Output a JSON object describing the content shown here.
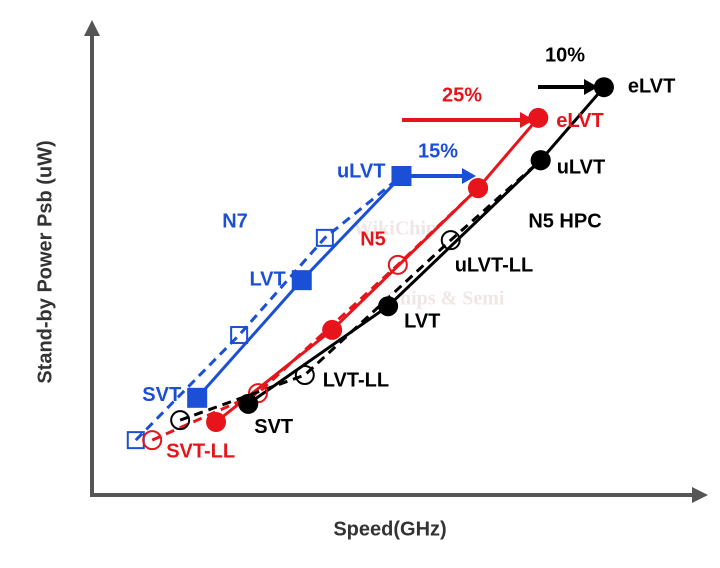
{
  "chart_data": {
    "type": "line",
    "x_label": "Speed(GHz)",
    "y_label": "Stand-by Power Psb (uW)",
    "watermark": [
      "WikiChip",
      "Chips & Semi"
    ],
    "xlim": [
      0,
      100
    ],
    "ylim": [
      0,
      100
    ],
    "series": [
      {
        "name": "N7",
        "color": "#1a4fd6",
        "style": "solid",
        "marker": "filled-square",
        "x": [
          17.3,
          34.5,
          50.9
        ],
        "values": [
          20.9,
          46.2,
          68.6
        ],
        "labels": [
          "SVT",
          "LVT",
          "uLVT"
        ]
      },
      {
        "color": "#1a4fd6",
        "style": "dashed",
        "marker": "open-square",
        "x": [
          7.2,
          24.2,
          38.3,
          50.9
        ],
        "values": [
          11.8,
          34.4,
          55.3,
          68.6
        ]
      },
      {
        "name": "N5",
        "color": "#e8141c",
        "style": "solid",
        "marker": "filled-circle",
        "x": [
          20.4,
          39.5,
          63.5,
          73.4
        ],
        "values": [
          15.7,
          35.5,
          66.0,
          81.1
        ],
        "labels": [
          null,
          null,
          null,
          "eLVT"
        ]
      },
      {
        "color": "#e8141c",
        "style": "dashed",
        "marker": "open-circle",
        "x": [
          9.9,
          27.3,
          50.3,
          63.5
        ],
        "values": [
          11.8,
          21.9,
          49.5,
          66.0
        ],
        "labels": [
          "SVT-LL",
          null,
          null,
          null
        ]
      },
      {
        "name": "N5 HPC",
        "color": "#000000",
        "style": "solid",
        "marker": "filled-circle",
        "x": [
          25.7,
          48.7,
          73.8,
          84.2
        ],
        "values": [
          19.6,
          40.6,
          72.0,
          87.7
        ],
        "labels": [
          "SVT",
          "LVT",
          "uLVT",
          "eLVT"
        ]
      },
      {
        "color": "#000000",
        "style": "dashed",
        "marker": "open-circle",
        "x": [
          14.5,
          35.0,
          59.0,
          73.8
        ],
        "values": [
          16.1,
          25.8,
          54.8,
          72.0
        ],
        "labels": [
          null,
          "LVT-LL",
          "uLVT-LL",
          null
        ]
      }
    ],
    "annotations": [
      {
        "text": "15%",
        "color": "#1a4fd6"
      },
      {
        "text": "25%",
        "color": "#e8141c"
      },
      {
        "text": "10%",
        "color": "#000000"
      }
    ]
  }
}
